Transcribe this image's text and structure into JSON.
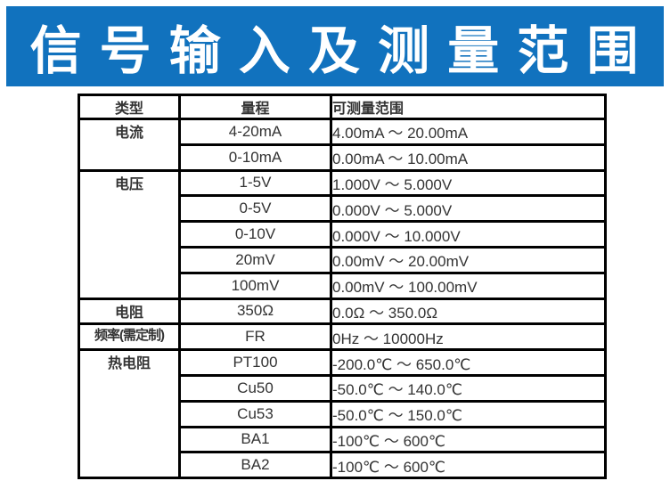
{
  "banner": {
    "title": "信 号 输 入 及 测 量 范 围",
    "bg_color": "#1172be",
    "text_color": "#ffffff"
  },
  "colors": {
    "table_border": "#000000",
    "table_text": "#333333",
    "page_bg": "#ffffff"
  },
  "table": {
    "headers": {
      "type": "类型",
      "range": "量程",
      "measurable": "可测量范围"
    },
    "groups": [
      {
        "type": "电流",
        "rows": [
          {
            "range": "4-20mA",
            "measurable": "4.00mA ～ 20.00mA"
          },
          {
            "range": "0-10mA",
            "measurable": "0.00mA ～ 10.00mA"
          }
        ]
      },
      {
        "type": "电压",
        "rows": [
          {
            "range": "1-5V",
            "measurable": "1.000V ～ 5.000V"
          },
          {
            "range": "0-5V",
            "measurable": "0.000V ～ 5.000V"
          },
          {
            "range": "0-10V",
            "measurable": "0.000V ～ 10.000V"
          },
          {
            "range": "20mV",
            "measurable": "0.00mV ～ 20.00mV"
          },
          {
            "range": "100mV",
            "measurable": "0.00mV ～ 100.00mV"
          }
        ]
      },
      {
        "type": "电阻",
        "rows": [
          {
            "range": "350Ω",
            "measurable": "0.0Ω ～ 350.0Ω"
          }
        ]
      },
      {
        "type": "频率(需定制)",
        "rows": [
          {
            "range": "FR",
            "measurable": "0Hz ～ 10000Hz"
          }
        ]
      },
      {
        "type": "热电阻",
        "rows": [
          {
            "range": "PT100",
            "measurable": "-200.0℃ ～ 650.0℃"
          },
          {
            "range": "Cu50",
            "measurable": "-50.0℃ ～ 140.0℃"
          },
          {
            "range": "Cu53",
            "measurable": "-50.0℃ ～ 150.0℃"
          },
          {
            "range": "BA1",
            "measurable": "-100℃ ～ 600℃"
          },
          {
            "range": "BA2",
            "measurable": "-100℃ ～ 600℃"
          }
        ]
      }
    ]
  }
}
